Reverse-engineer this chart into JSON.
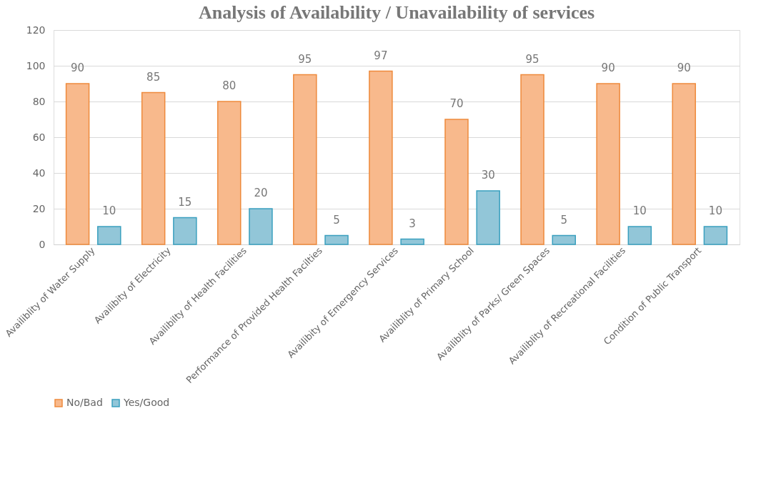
{
  "chart_data": {
    "type": "bar",
    "title": "Analysis of Availability / Unavailability of services",
    "categories": [
      "Availiblity of Water Supply",
      "Availibity of Electricity",
      "Availibilty of Health Facilities",
      "Performance of Provided Health Facilties",
      "Availibity of Emergency Services",
      "Availiblity of Primary School",
      "Availiblity of Parks/ Green Spaces",
      "Availiblity of Recreational Facilities",
      "Condition of Public Transport"
    ],
    "series": [
      {
        "name": "No/Bad",
        "color": "#f8b98c",
        "values": [
          90,
          85,
          80,
          95,
          97,
          70,
          95,
          90,
          90
        ]
      },
      {
        "name": "Yes/Good",
        "color": "#92c6d8",
        "values": [
          10,
          15,
          20,
          5,
          3,
          30,
          5,
          10,
          10
        ]
      }
    ],
    "ylim": [
      0,
      120
    ],
    "yticks": [
      0,
      20,
      40,
      60,
      80,
      100,
      120
    ],
    "grid": "y",
    "legend": "bottom",
    "data_labels": true
  }
}
